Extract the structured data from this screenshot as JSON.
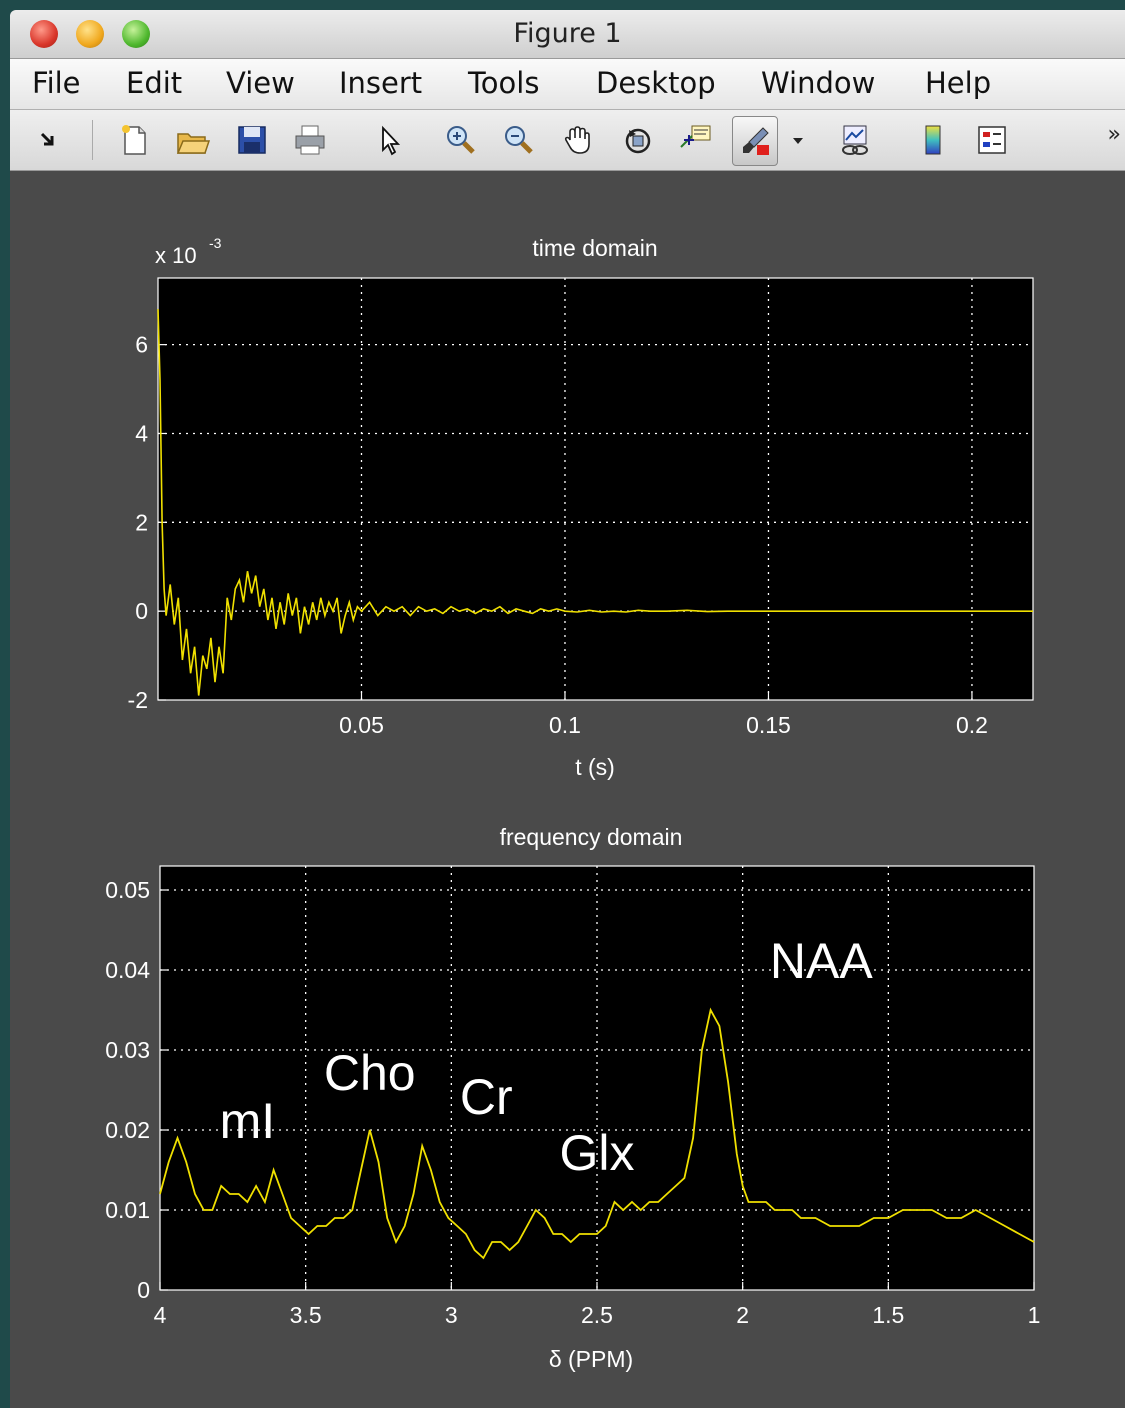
{
  "window": {
    "title": "Figure 1"
  },
  "menu": [
    "File",
    "Edit",
    "View",
    "Insert",
    "Tools",
    "Desktop",
    "Window",
    "Help"
  ],
  "toolbar": {
    "icons": [
      "dock-arrow-icon",
      "new-figure-icon",
      "open-file-icon",
      "save-icon",
      "print-icon",
      "edit-plot-arrow-icon",
      "zoom-in-icon",
      "zoom-out-icon",
      "pan-hand-icon",
      "rotate-3d-icon",
      "data-cursor-icon",
      "brush-icon",
      "brush-dropdown-icon",
      "link-plot-icon",
      "colorbar-icon",
      "legend-icon"
    ],
    "overflow": "»"
  },
  "colors": {
    "trace": "#f0e000",
    "axes_bg": "#000000",
    "figure_bg": "#4a4a4a",
    "text": "#ffffff"
  },
  "chart_data": [
    {
      "type": "line",
      "title": "time domain",
      "xlabel": "t (s)",
      "ylabel": "",
      "y_exponent_label": "x 10",
      "y_exponent_power": "-3",
      "xlim": [
        0,
        0.215
      ],
      "ylim": [
        -2,
        7.5
      ],
      "xticks": [
        0.05,
        0.1,
        0.15,
        0.2
      ],
      "xtick_labels": [
        "0.05",
        "0.1",
        "0.15",
        "0.2"
      ],
      "yticks": [
        -2,
        0,
        2,
        4,
        6
      ],
      "ytick_labels": [
        "-2",
        "0",
        "2",
        "4",
        "6"
      ],
      "grid": true,
      "series": [
        {
          "x": [
            0.0,
            0.0005,
            0.001,
            0.0015,
            0.002,
            0.003,
            0.004,
            0.005,
            0.006,
            0.007,
            0.008,
            0.009,
            0.01,
            0.011,
            0.012,
            0.013,
            0.014,
            0.015,
            0.016,
            0.017,
            0.018,
            0.019,
            0.02,
            0.021,
            0.022,
            0.023,
            0.024,
            0.025,
            0.026,
            0.027,
            0.028,
            0.029,
            0.03,
            0.031,
            0.032,
            0.033,
            0.034,
            0.035,
            0.036,
            0.037,
            0.038,
            0.039,
            0.04,
            0.041,
            0.042,
            0.043,
            0.044,
            0.045,
            0.046,
            0.047,
            0.048,
            0.049,
            0.05,
            0.052,
            0.054,
            0.056,
            0.058,
            0.06,
            0.062,
            0.064,
            0.066,
            0.068,
            0.07,
            0.072,
            0.074,
            0.076,
            0.078,
            0.08,
            0.082,
            0.084,
            0.086,
            0.088,
            0.09,
            0.092,
            0.094,
            0.096,
            0.098,
            0.1,
            0.103,
            0.106,
            0.109,
            0.112,
            0.115,
            0.118,
            0.121,
            0.125,
            0.13,
            0.135,
            0.14,
            0.15,
            0.16,
            0.18,
            0.2,
            0.215
          ],
          "y": [
            6.8,
            5.2,
            2.0,
            0.5,
            -0.1,
            0.6,
            -0.3,
            0.3,
            -1.1,
            -0.4,
            -1.4,
            -0.8,
            -1.9,
            -1.0,
            -1.3,
            -0.6,
            -1.6,
            -0.8,
            -1.4,
            0.3,
            -0.2,
            0.5,
            0.7,
            0.2,
            0.9,
            0.4,
            0.8,
            0.1,
            0.5,
            -0.2,
            0.3,
            -0.4,
            0.2,
            -0.3,
            0.4,
            -0.1,
            0.3,
            -0.5,
            0.1,
            -0.3,
            0.2,
            -0.2,
            0.3,
            -0.1,
            0.2,
            0.0,
            0.3,
            -0.5,
            -0.1,
            0.2,
            -0.2,
            0.1,
            0.0,
            0.2,
            -0.1,
            0.1,
            0.0,
            0.1,
            -0.1,
            0.1,
            0.0,
            0.05,
            -0.05,
            0.1,
            0.0,
            0.05,
            -0.05,
            0.05,
            0.0,
            0.1,
            -0.05,
            0.05,
            0.0,
            -0.05,
            0.05,
            0.0,
            0.05,
            0.0,
            -0.02,
            0.02,
            -0.02,
            0.0,
            -0.02,
            0.02,
            0.0,
            0.0,
            0.02,
            -0.01,
            0.0,
            0.0,
            0.0,
            0.0,
            0.0,
            0.0
          ]
        }
      ]
    },
    {
      "type": "line",
      "title": "frequency domain",
      "xlabel": "δ (PPM)",
      "ylabel": "",
      "xlim": [
        4,
        1
      ],
      "x_reversed": true,
      "ylim": [
        0,
        0.053
      ],
      "xticks": [
        4,
        3.5,
        3,
        2.5,
        2,
        1.5,
        1
      ],
      "xtick_labels": [
        "4",
        "3.5",
        "3",
        "2.5",
        "2",
        "1.5",
        "1"
      ],
      "yticks": [
        0,
        0.01,
        0.02,
        0.03,
        0.04,
        0.05
      ],
      "ytick_labels": [
        "0",
        "0.01",
        "0.02",
        "0.03",
        "0.04",
        "0.05"
      ],
      "grid": true,
      "annotations": [
        {
          "text": "mI",
          "x": 3.7,
          "y": 0.019
        },
        {
          "text": "Cho",
          "x": 3.28,
          "y": 0.025
        },
        {
          "text": "Cr",
          "x": 2.88,
          "y": 0.022
        },
        {
          "text": "Glx",
          "x": 2.5,
          "y": 0.015
        },
        {
          "text": "NAA",
          "x": 1.73,
          "y": 0.039
        }
      ],
      "series": [
        {
          "x": [
            4.0,
            3.97,
            3.94,
            3.91,
            3.88,
            3.85,
            3.82,
            3.79,
            3.76,
            3.73,
            3.7,
            3.67,
            3.64,
            3.61,
            3.58,
            3.55,
            3.52,
            3.49,
            3.46,
            3.43,
            3.4,
            3.37,
            3.34,
            3.31,
            3.28,
            3.25,
            3.22,
            3.19,
            3.16,
            3.13,
            3.1,
            3.07,
            3.04,
            3.01,
            2.98,
            2.95,
            2.92,
            2.89,
            2.86,
            2.83,
            2.8,
            2.77,
            2.74,
            2.71,
            2.68,
            2.65,
            2.62,
            2.59,
            2.56,
            2.53,
            2.5,
            2.47,
            2.44,
            2.41,
            2.38,
            2.35,
            2.32,
            2.29,
            2.26,
            2.23,
            2.2,
            2.17,
            2.14,
            2.11,
            2.08,
            2.05,
            2.02,
            2.0,
            1.98,
            1.95,
            1.92,
            1.89,
            1.86,
            1.83,
            1.8,
            1.75,
            1.7,
            1.65,
            1.6,
            1.55,
            1.5,
            1.45,
            1.4,
            1.35,
            1.3,
            1.25,
            1.2,
            1.15,
            1.1,
            1.05,
            1.0
          ],
          "y": [
            0.012,
            0.016,
            0.019,
            0.016,
            0.012,
            0.01,
            0.01,
            0.013,
            0.012,
            0.012,
            0.011,
            0.013,
            0.011,
            0.015,
            0.012,
            0.009,
            0.008,
            0.007,
            0.008,
            0.008,
            0.009,
            0.009,
            0.01,
            0.015,
            0.02,
            0.016,
            0.009,
            0.006,
            0.008,
            0.012,
            0.018,
            0.015,
            0.011,
            0.009,
            0.008,
            0.007,
            0.005,
            0.004,
            0.006,
            0.006,
            0.005,
            0.006,
            0.008,
            0.01,
            0.009,
            0.007,
            0.007,
            0.006,
            0.007,
            0.007,
            0.007,
            0.008,
            0.011,
            0.01,
            0.011,
            0.01,
            0.011,
            0.011,
            0.012,
            0.013,
            0.014,
            0.019,
            0.03,
            0.035,
            0.033,
            0.026,
            0.017,
            0.013,
            0.011,
            0.011,
            0.011,
            0.01,
            0.01,
            0.01,
            0.009,
            0.009,
            0.008,
            0.008,
            0.008,
            0.009,
            0.009,
            0.01,
            0.01,
            0.01,
            0.009,
            0.009,
            0.01,
            0.009,
            0.008,
            0.007,
            0.006
          ]
        }
      ]
    }
  ]
}
